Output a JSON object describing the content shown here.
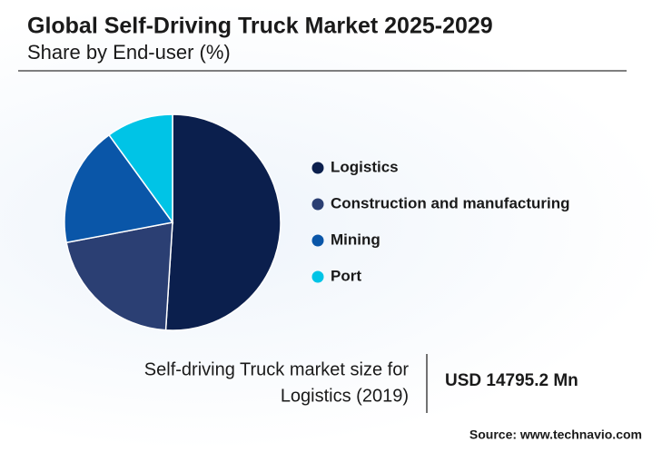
{
  "chart_data": {
    "type": "pie",
    "title": "Global Self-Driving Truck Market 2025-2029",
    "subtitle": "Share by End-user (%)",
    "categories": [
      "Logistics",
      "Construction and manufacturing",
      "Mining",
      "Port"
    ],
    "values": [
      51,
      21,
      18,
      10
    ],
    "colors": [
      "#0b1f4d",
      "#2b3f73",
      "#0a56a8",
      "#00c4e6"
    ],
    "legend": "right",
    "caption_lines": [
      "Self-driving Truck market size for",
      "Logistics (2019)"
    ],
    "highlight": "USD 14795.2 Mn",
    "source": "Source: www.technavio.com"
  }
}
